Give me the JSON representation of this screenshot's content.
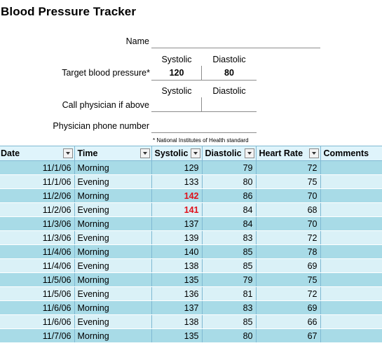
{
  "title": "Blood Pressure Tracker",
  "form": {
    "name_label": "Name",
    "name_value": "",
    "systolic_head": "Systolic",
    "diastolic_head": "Diastolic",
    "target_label": "Target blood pressure*",
    "target_systolic": "120",
    "target_diastolic": "80",
    "call_label": "Call physician if above",
    "call_systolic": "",
    "call_diastolic": "",
    "phone_label": "Physician phone number",
    "phone_value": "",
    "footnote": "* National Institutes of Health standard"
  },
  "table": {
    "headers": [
      "Date",
      "Time",
      "Systolic",
      "Diastolic",
      "Heart Rate",
      "Comments"
    ],
    "rows": [
      {
        "date": "11/1/06",
        "time": "Morning",
        "sys": "129",
        "dia": "79",
        "hr": "72",
        "comments": "",
        "high": false
      },
      {
        "date": "11/1/06",
        "time": "Evening",
        "sys": "133",
        "dia": "80",
        "hr": "75",
        "comments": "",
        "high": false
      },
      {
        "date": "11/2/06",
        "time": "Morning",
        "sys": "142",
        "dia": "86",
        "hr": "70",
        "comments": "",
        "high": true
      },
      {
        "date": "11/2/06",
        "time": "Evening",
        "sys": "141",
        "dia": "84",
        "hr": "68",
        "comments": "",
        "high": true
      },
      {
        "date": "11/3/06",
        "time": "Morning",
        "sys": "137",
        "dia": "84",
        "hr": "70",
        "comments": "",
        "high": false
      },
      {
        "date": "11/3/06",
        "time": "Evening",
        "sys": "139",
        "dia": "83",
        "hr": "72",
        "comments": "",
        "high": false
      },
      {
        "date": "11/4/06",
        "time": "Morning",
        "sys": "140",
        "dia": "85",
        "hr": "78",
        "comments": "",
        "high": false
      },
      {
        "date": "11/4/06",
        "time": "Evening",
        "sys": "138",
        "dia": "85",
        "hr": "69",
        "comments": "",
        "high": false
      },
      {
        "date": "11/5/06",
        "time": "Morning",
        "sys": "135",
        "dia": "79",
        "hr": "75",
        "comments": "",
        "high": false
      },
      {
        "date": "11/5/06",
        "time": "Evening",
        "sys": "136",
        "dia": "81",
        "hr": "72",
        "comments": "",
        "high": false
      },
      {
        "date": "11/6/06",
        "time": "Morning",
        "sys": "137",
        "dia": "83",
        "hr": "69",
        "comments": "",
        "high": false
      },
      {
        "date": "11/6/06",
        "time": "Evening",
        "sys": "138",
        "dia": "85",
        "hr": "66",
        "comments": "",
        "high": false
      },
      {
        "date": "11/7/06",
        "time": "Morning",
        "sys": "135",
        "dia": "80",
        "hr": "67",
        "comments": "",
        "high": false
      }
    ]
  },
  "colors": {
    "band_dark": "#a8dbe7",
    "band_light": "#daf1f7",
    "header_bg": "#dff4fb",
    "alert_red": "#e0101a"
  }
}
